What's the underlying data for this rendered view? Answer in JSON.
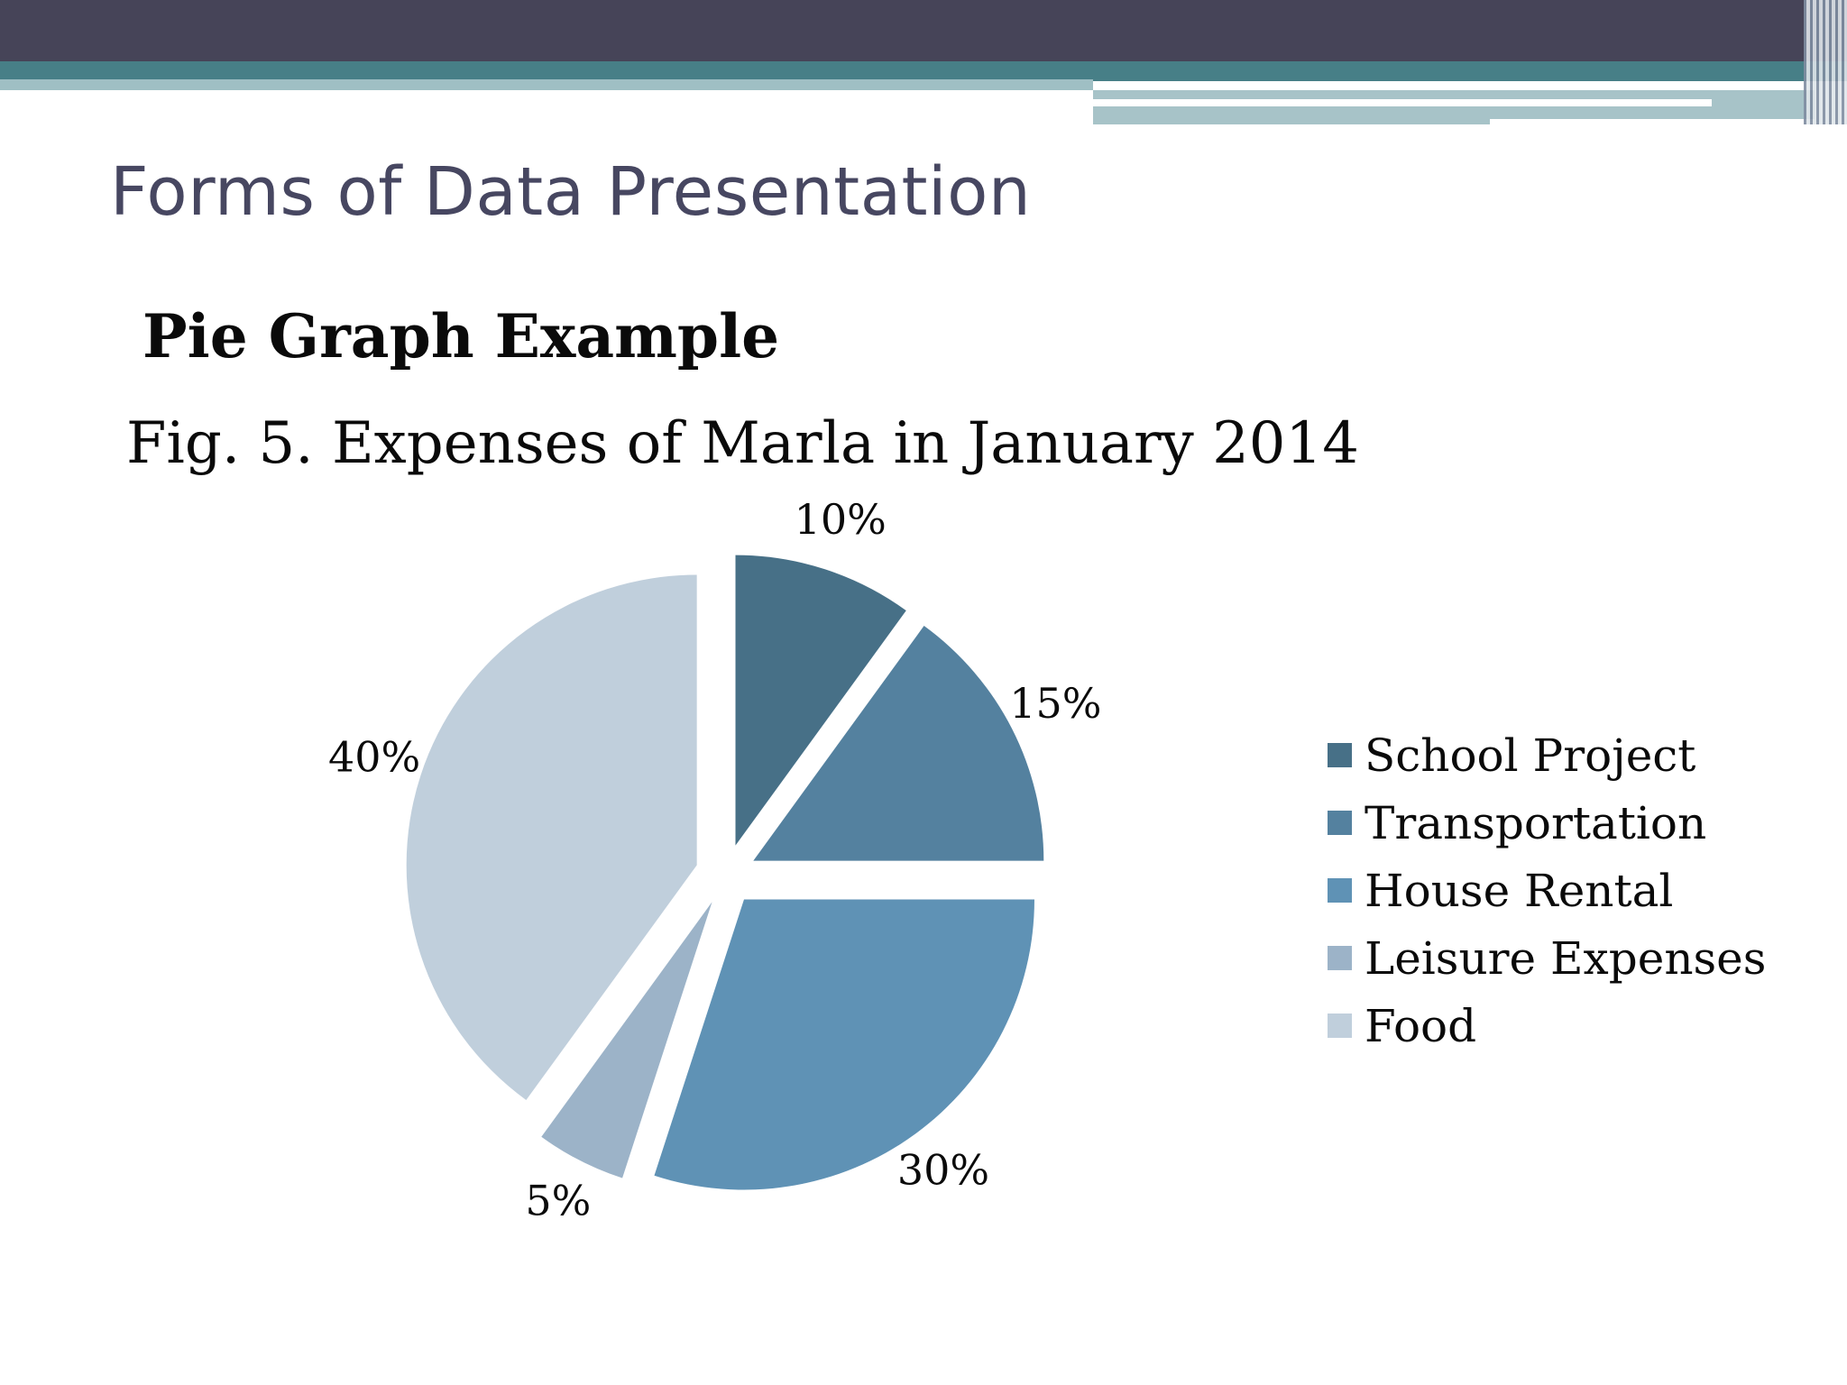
{
  "slide": {
    "title": "Forms of Data Presentation",
    "subtitle": "Pie Graph Example",
    "caption": "Fig. 5. Expenses of Marla in January 2014"
  },
  "theme": {
    "header_dark": "#464458",
    "header_teal": "#477f87",
    "header_light": "#a7c3c8"
  },
  "chart_data": {
    "type": "pie",
    "title": "Fig. 5. Expenses of Marla in January 2014",
    "exploded": true,
    "legend_position": "right",
    "categories": [
      "School Project",
      "Transportation",
      "House Rental",
      "Leisure Expenses",
      "Food"
    ],
    "values": [
      10,
      15,
      30,
      5,
      40
    ],
    "labels": [
      "10%",
      "15%",
      "30%",
      "5%",
      "40%"
    ],
    "colors": [
      "#477087",
      "#54819f",
      "#5f92b5",
      "#9cb3c8",
      "#c0cfdc"
    ]
  }
}
